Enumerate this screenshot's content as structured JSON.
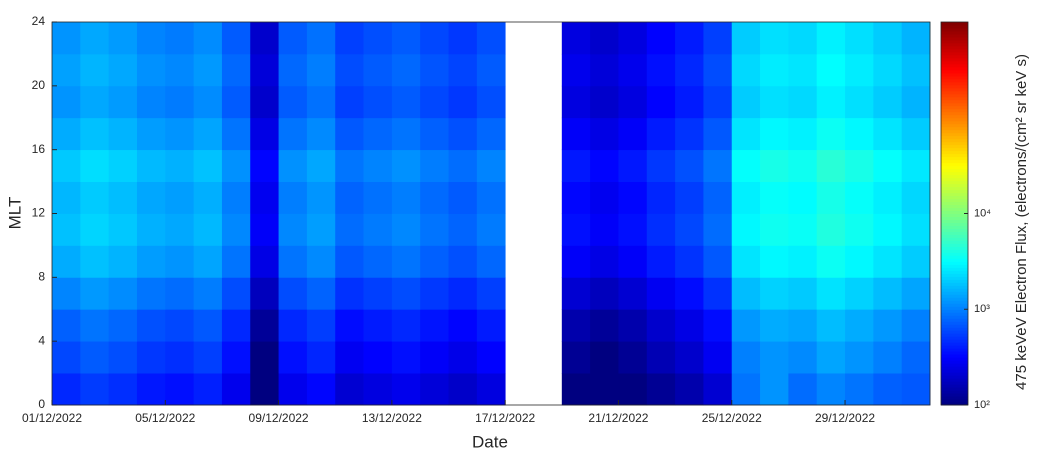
{
  "chart_data": {
    "type": "heatmap",
    "xlabel": "Date",
    "ylabel": "MLT",
    "colorbar_label": "475 keVeV Electron Flux, (electrons/(cm² sr keV s)",
    "colormap": "jet",
    "color_log": true,
    "x": [
      "01/12/2022",
      "02/12/2022",
      "03/12/2022",
      "04/12/2022",
      "05/12/2022",
      "06/12/2022",
      "07/12/2022",
      "08/12/2022",
      "09/12/2022",
      "10/12/2022",
      "11/12/2022",
      "12/12/2022",
      "13/12/2022",
      "14/12/2022",
      "15/12/2022",
      "16/12/2022",
      "17/12/2022",
      "18/12/2022",
      "19/12/2022",
      "20/12/2022",
      "21/12/2022",
      "22/12/2022",
      "23/12/2022",
      "24/12/2022",
      "25/12/2022",
      "26/12/2022",
      "27/12/2022",
      "28/12/2022",
      "29/12/2022",
      "30/12/2022",
      "31/12/2022"
    ],
    "y": [
      0,
      2,
      4,
      6,
      8,
      10,
      12,
      14,
      16,
      18,
      20,
      22
    ],
    "ybin": 2,
    "z": [
      [
        450,
        540,
        480,
        390,
        360,
        420,
        270,
        75,
        270,
        330,
        210,
        240,
        270,
        225,
        195,
        240,
        null,
        null,
        90,
        75,
        90,
        120,
        150,
        210,
        900,
        1200,
        840,
        1050,
        900,
        750,
        700
      ],
      [
        600,
        720,
        640,
        520,
        480,
        560,
        360,
        100,
        360,
        440,
        280,
        320,
        360,
        300,
        260,
        320,
        null,
        null,
        120,
        100,
        120,
        160,
        200,
        280,
        1000,
        1200,
        1100,
        1400,
        1200,
        1000,
        800
      ],
      [
        750,
        900,
        800,
        650,
        600,
        700,
        450,
        125,
        450,
        550,
        350,
        400,
        450,
        375,
        325,
        400,
        null,
        null,
        150,
        125,
        150,
        200,
        250,
        350,
        1250,
        1500,
        1400,
        1750,
        1500,
        1250,
        1000
      ],
      [
        1050,
        1260,
        1120,
        910,
        840,
        980,
        630,
        175,
        630,
        770,
        490,
        560,
        630,
        525,
        455,
        560,
        null,
        null,
        210,
        175,
        210,
        280,
        350,
        490,
        1750,
        2100,
        1960,
        2450,
        2100,
        1750,
        1400
      ],
      [
        1500,
        1800,
        1600,
        1300,
        1200,
        1400,
        900,
        250,
        900,
        1100,
        700,
        800,
        900,
        750,
        650,
        800,
        null,
        null,
        300,
        250,
        300,
        400,
        500,
        700,
        2500,
        3000,
        2800,
        3500,
        3000,
        2500,
        2000
      ],
      [
        1800,
        2160,
        1920,
        1560,
        1440,
        1680,
        1080,
        300,
        1080,
        1320,
        840,
        960,
        1080,
        900,
        780,
        960,
        null,
        null,
        360,
        300,
        360,
        480,
        600,
        840,
        3000,
        3600,
        3400,
        4200,
        3600,
        3000,
        2400
      ],
      [
        1650,
        1980,
        1760,
        1430,
        1320,
        1540,
        990,
        275,
        990,
        1210,
        770,
        880,
        990,
        825,
        715,
        880,
        null,
        null,
        330,
        275,
        330,
        440,
        550,
        770,
        2750,
        3300,
        3100,
        3850,
        3300,
        2750,
        2200
      ],
      [
        1950,
        2340,
        2080,
        1690,
        1560,
        1820,
        1170,
        325,
        1170,
        1430,
        910,
        1040,
        1170,
        975,
        845,
        1040,
        null,
        null,
        390,
        325,
        390,
        520,
        650,
        910,
        3250,
        3900,
        3600,
        4550,
        3900,
        3250,
        2600
      ],
      [
        1500,
        1800,
        1600,
        1300,
        1200,
        1400,
        900,
        250,
        900,
        1100,
        700,
        800,
        900,
        750,
        650,
        800,
        null,
        null,
        300,
        250,
        300,
        400,
        500,
        700,
        2500,
        3000,
        2800,
        3500,
        3000,
        2500,
        2000
      ],
      [
        1200,
        1440,
        1280,
        1040,
        960,
        1120,
        720,
        200,
        720,
        880,
        560,
        640,
        720,
        600,
        520,
        640,
        null,
        null,
        240,
        200,
        240,
        320,
        400,
        560,
        2000,
        2400,
        2240,
        2800,
        2400,
        2000,
        1600
      ],
      [
        1350,
        1620,
        1440,
        1170,
        1080,
        1260,
        810,
        225,
        810,
        990,
        630,
        720,
        810,
        675,
        585,
        720,
        null,
        null,
        270,
        225,
        270,
        360,
        450,
        630,
        2250,
        2700,
        2520,
        3150,
        2700,
        2250,
        1800
      ],
      [
        1200,
        1440,
        1280,
        1040,
        960,
        1120,
        720,
        200,
        720,
        880,
        560,
        640,
        720,
        600,
        520,
        640,
        null,
        null,
        240,
        200,
        240,
        320,
        400,
        560,
        2000,
        2400,
        2240,
        2800,
        2400,
        2000,
        1600
      ]
    ],
    "xlim": [
      "01/12/2022",
      "31/12/2022"
    ],
    "xticks": [
      "01/12/2022",
      "05/12/2022",
      "09/12/2022",
      "13/12/2022",
      "17/12/2022",
      "21/12/2022",
      "25/12/2022",
      "29/12/2022"
    ],
    "ylim": [
      0,
      24
    ],
    "yticks": [
      0,
      4,
      8,
      12,
      16,
      20,
      24
    ],
    "clim": [
      100,
      1000000
    ],
    "cticks": [
      {
        "value": 100,
        "label": "10²"
      },
      {
        "value": 1000,
        "label": "10³"
      },
      {
        "value": 10000,
        "label": "10⁴"
      }
    ]
  }
}
